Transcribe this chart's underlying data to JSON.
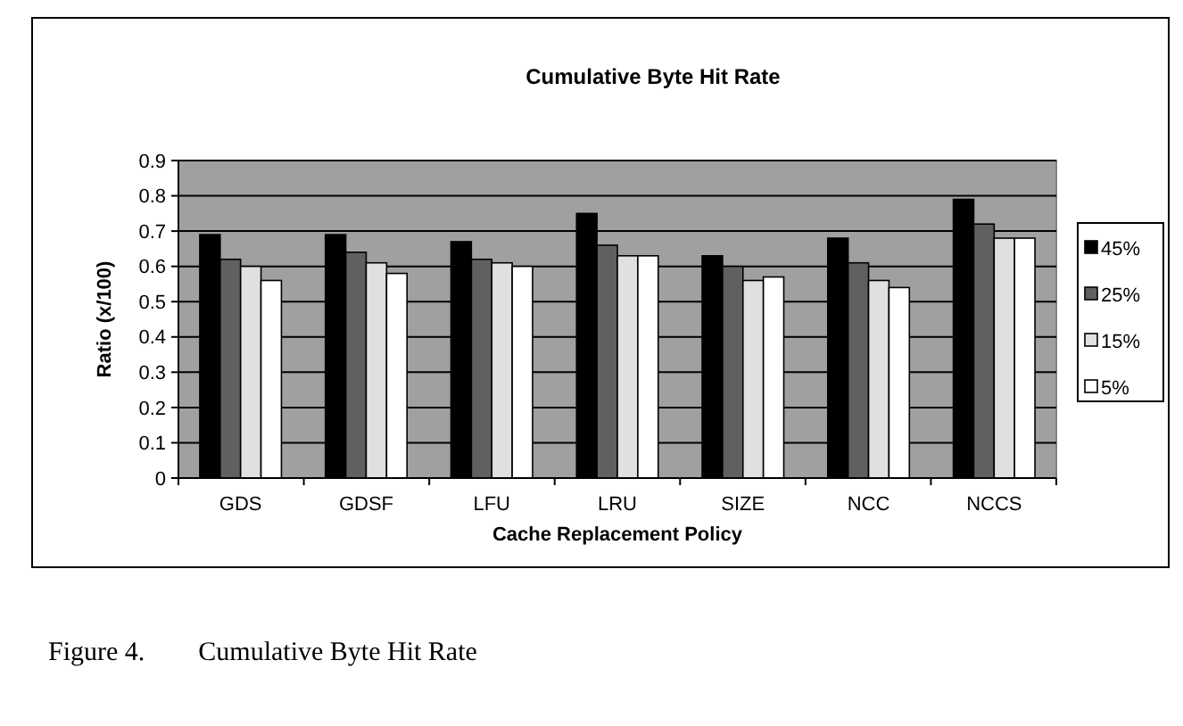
{
  "chart_data": {
    "type": "bar",
    "title": "Cumulative Byte Hit Rate",
    "xlabel": "Cache Replacement Policy",
    "ylabel": "Ratio (x/100)",
    "categories": [
      "GDS",
      "GDSF",
      "LFU",
      "LRU",
      "SIZE",
      "NCC",
      "NCCS"
    ],
    "series": [
      {
        "name": "45%",
        "color": "#000000",
        "values": [
          0.69,
          0.69,
          0.67,
          0.75,
          0.63,
          0.68,
          0.79
        ]
      },
      {
        "name": "25%",
        "color": "#606060",
        "values": [
          0.62,
          0.64,
          0.62,
          0.66,
          0.6,
          0.61,
          0.72
        ]
      },
      {
        "name": "15%",
        "color": "#e0e0e0",
        "values": [
          0.6,
          0.61,
          0.61,
          0.63,
          0.56,
          0.56,
          0.68
        ]
      },
      {
        "name": "5%",
        "color": "#ffffff",
        "values": [
          0.56,
          0.58,
          0.6,
          0.63,
          0.57,
          0.54,
          0.68
        ]
      }
    ],
    "ylim": [
      0,
      0.9
    ],
    "yticks": [
      0,
      0.1,
      0.2,
      0.3,
      0.4,
      0.5,
      0.6,
      0.7,
      0.8,
      0.9
    ],
    "grid": "y",
    "legend": "right",
    "annotations": [
      "Figure 4.        Cumulative Byte Hit Rate"
    ]
  }
}
